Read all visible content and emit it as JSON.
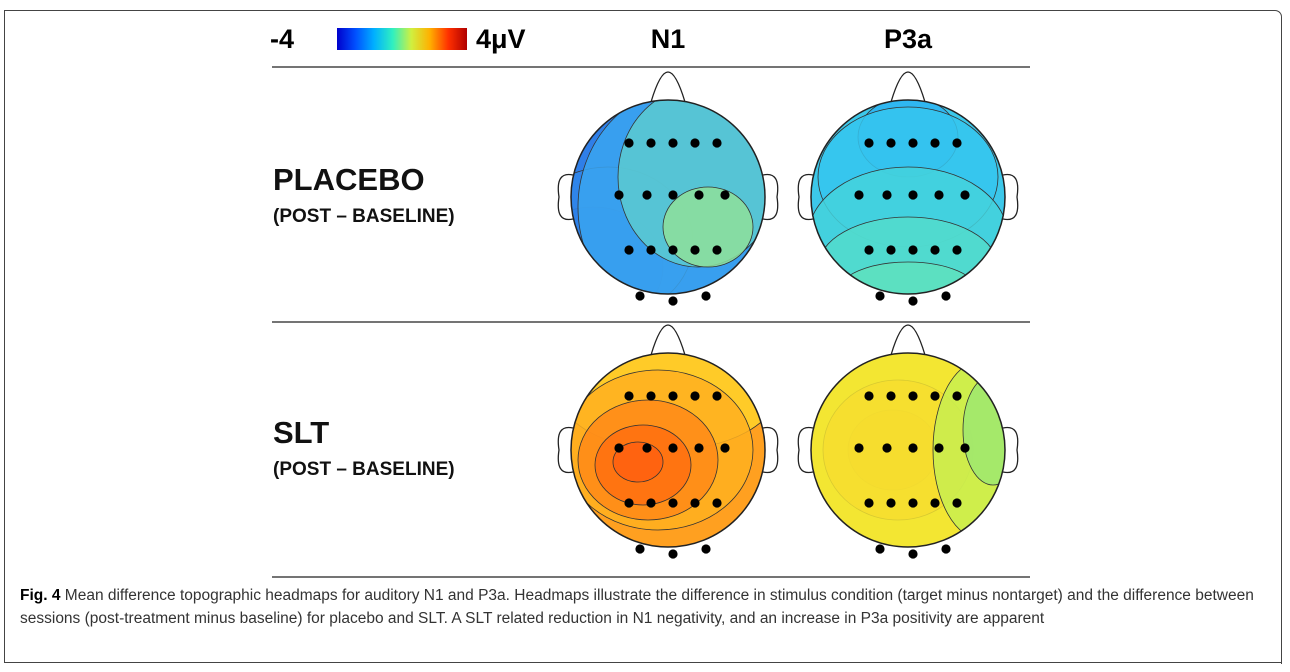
{
  "colorbar": {
    "min_label": "-4",
    "max_label": "4μV",
    "stops": [
      "#0000cc",
      "#0050ff",
      "#00b0ff",
      "#30f0c0",
      "#d0f040",
      "#ffb000",
      "#ff3000",
      "#b00000"
    ]
  },
  "columns": [
    "N1",
    "P3a"
  ],
  "rows": [
    {
      "title": "PLACEBO",
      "subtitle": "(POST – BASELINE)"
    },
    {
      "title": "SLT",
      "subtitle": "(POST – BASELINE)"
    }
  ],
  "headmaps": [
    {
      "row": "PLACEBO",
      "component": "N1",
      "fill": "#2f7fe8",
      "colors": [
        "#1e5fe0",
        "#2f86ea",
        "#3aa5f0",
        "#5ccad0",
        "#8ee09a"
      ]
    },
    {
      "row": "PLACEBO",
      "component": "P3a",
      "fill": "#3cc8ea",
      "colors": [
        "#2db4f2",
        "#35c6ee",
        "#44d2dc",
        "#52dccc",
        "#5ee0be"
      ]
    },
    {
      "row": "SLT",
      "component": "N1",
      "fill": "#ffa020",
      "colors": [
        "#ffd22a",
        "#ffb020",
        "#ff8a18",
        "#ff7010",
        "#ff6010"
      ]
    },
    {
      "row": "SLT",
      "component": "P3a",
      "fill": "#e6f040",
      "colors": [
        "#ff8a18",
        "#ffb828",
        "#f5e430",
        "#c8ee50",
        "#9ee870"
      ]
    }
  ],
  "caption": {
    "label": "Fig. 4",
    "text": " Mean difference topographic headmaps for auditory N1 and P3a. Headmaps illustrate the difference in stimulus condition (target minus nontarget) and the difference between sessions (post-treatment minus baseline) for placebo and SLT. A SLT related reduction in N1 negativity, and an increase in P3a positivity are apparent"
  }
}
